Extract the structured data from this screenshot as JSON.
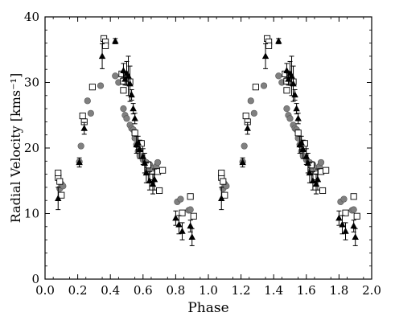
{
  "chart_data": {
    "type": "scatter",
    "title": "",
    "xlabel": "Phase",
    "ylabel": "Radial Velocity [kms⁻¹]",
    "xlim": [
      0.0,
      2.0
    ],
    "ylim": [
      0,
      40
    ],
    "xticks": [
      0.0,
      0.2,
      0.4,
      0.6,
      0.8,
      1.0,
      1.2,
      1.4,
      1.6,
      1.8,
      2.0
    ],
    "xtick_labels": [
      "0.0",
      "0.2",
      "0.4",
      "0.6",
      "0.8",
      "1.0",
      "1.2",
      "1.4",
      "1.6",
      "1.8",
      "2.0"
    ],
    "yticks": [
      0,
      10,
      20,
      30,
      40
    ],
    "ytick_labels": [
      "0",
      "10",
      "20",
      "30",
      "40"
    ],
    "grid": false,
    "series": [
      {
        "marker": "circle",
        "color": "#808080",
        "points": [
          [
            0.09,
            13.8
          ],
          [
            0.1,
            14.5
          ],
          [
            0.11,
            14.2
          ],
          [
            0.21,
            17.9
          ],
          [
            0.22,
            20.3
          ],
          [
            0.26,
            27.2
          ],
          [
            0.28,
            25.3
          ],
          [
            0.34,
            29.5
          ],
          [
            0.43,
            31.0
          ],
          [
            0.45,
            30.0
          ],
          [
            0.48,
            26.0
          ],
          [
            0.49,
            25.0
          ],
          [
            0.5,
            24.5
          ],
          [
            0.52,
            23.5
          ],
          [
            0.53,
            23.0
          ],
          [
            0.54,
            22.8
          ],
          [
            0.55,
            21.5
          ],
          [
            0.56,
            20.5
          ],
          [
            0.57,
            19.5
          ],
          [
            0.58,
            18.8
          ],
          [
            0.6,
            18.2
          ],
          [
            0.62,
            17.8
          ],
          [
            0.63,
            16.5
          ],
          [
            0.64,
            17.5
          ],
          [
            0.66,
            16.9
          ],
          [
            0.68,
            17.2
          ],
          [
            0.69,
            17.8
          ],
          [
            0.81,
            11.8
          ],
          [
            0.83,
            12.2
          ],
          [
            0.88,
            10.5
          ],
          [
            0.89,
            10.6
          ]
        ]
      },
      {
        "marker": "square",
        "color": "#000000",
        "points": [
          [
            0.08,
            15.5
          ],
          [
            0.08,
            16.2
          ],
          [
            0.09,
            14.9
          ],
          [
            0.1,
            12.8
          ],
          [
            0.23,
            24.9
          ],
          [
            0.24,
            24.0
          ],
          [
            0.29,
            29.3
          ],
          [
            0.36,
            36.7
          ],
          [
            0.37,
            36.2
          ],
          [
            0.37,
            35.6
          ],
          [
            0.47,
            31.3
          ],
          [
            0.48,
            30.2
          ],
          [
            0.48,
            28.8
          ],
          [
            0.51,
            30.0
          ],
          [
            0.52,
            30.1
          ],
          [
            0.55,
            22.3
          ],
          [
            0.58,
            19.9
          ],
          [
            0.59,
            20.7
          ],
          [
            0.63,
            17.4
          ],
          [
            0.65,
            15.6
          ],
          [
            0.69,
            16.4
          ],
          [
            0.7,
            13.5
          ],
          [
            0.72,
            16.6
          ],
          [
            0.84,
            10.1
          ],
          [
            0.89,
            12.6
          ],
          [
            0.91,
            9.6
          ]
        ]
      },
      {
        "marker": "triangle",
        "color": "#000000",
        "error_bars": true,
        "points": [
          [
            0.08,
            12.3,
            1.7
          ],
          [
            0.21,
            17.8,
            0.7
          ],
          [
            0.24,
            23.0,
            0.9
          ],
          [
            0.35,
            34.0,
            1.9
          ],
          [
            0.43,
            36.3,
            0.4
          ],
          [
            0.48,
            31.8,
            1.1
          ],
          [
            0.49,
            30.5,
            0.9
          ],
          [
            0.5,
            31.4,
            1.8
          ],
          [
            0.51,
            31.0,
            3.0
          ],
          [
            0.52,
            29.8,
            2.7
          ],
          [
            0.53,
            28.1,
            0.8
          ],
          [
            0.54,
            26.0,
            0.8
          ],
          [
            0.55,
            24.5,
            0.8
          ],
          [
            0.56,
            20.5,
            1.3
          ],
          [
            0.57,
            20.8,
            1.0
          ],
          [
            0.58,
            19.8,
            1.4
          ],
          [
            0.6,
            18.7,
            1.2
          ],
          [
            0.61,
            17.7,
            1.5
          ],
          [
            0.62,
            16.2,
            1.5
          ],
          [
            0.64,
            15.0,
            1.4
          ],
          [
            0.66,
            14.5,
            1.5
          ],
          [
            0.67,
            15.2,
            1.6
          ],
          [
            0.8,
            9.3,
            1.1
          ],
          [
            0.82,
            8.3,
            1.4
          ],
          [
            0.84,
            7.3,
            1.3
          ],
          [
            0.89,
            8.1,
            0.9
          ],
          [
            0.9,
            6.4,
            1.3
          ]
        ]
      }
    ],
    "phase_repeat_offset": 1.0
  }
}
